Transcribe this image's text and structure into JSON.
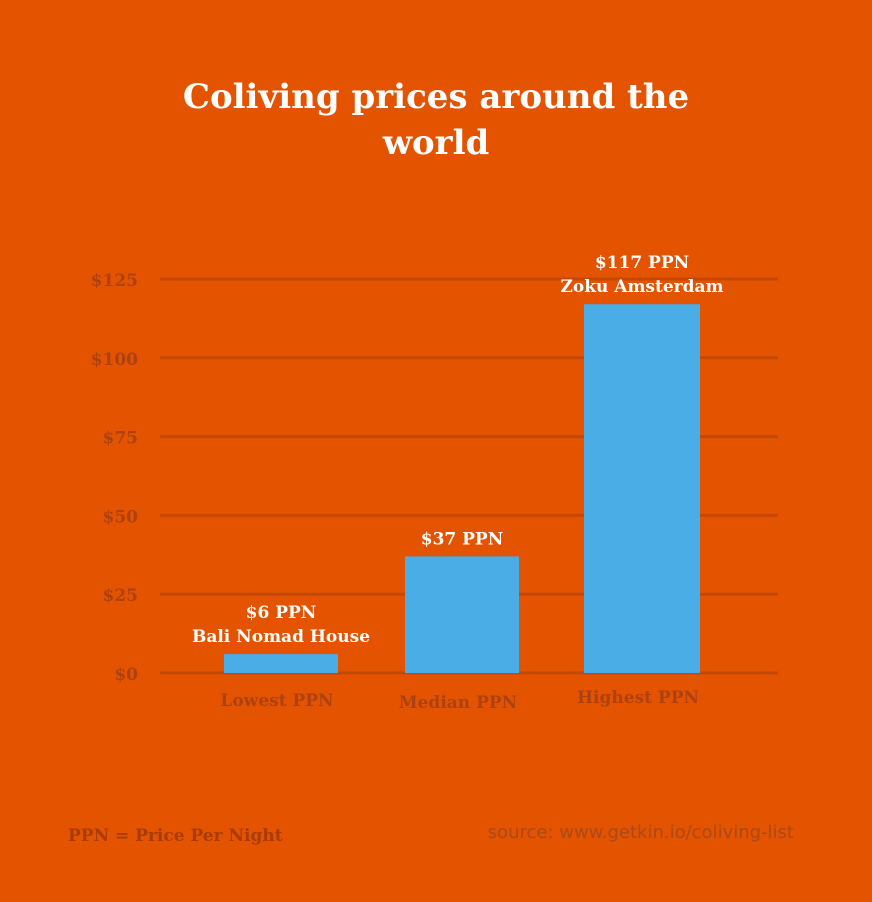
{
  "title": "Coliving prices around the world",
  "footnote": "PPN = Price Per Night",
  "source": "source: www.getkin.io/coliving-list",
  "colors": {
    "background": "#e35300",
    "bar": "#4aade6",
    "grid": "#c44805",
    "axis_text": "#ad4210",
    "label_text": "#ffffff"
  },
  "chart_data": {
    "type": "bar",
    "title": "Coliving prices around the world",
    "xlabel": "",
    "ylabel": "",
    "ylim": [
      0,
      125
    ],
    "yticks": [
      0,
      25,
      50,
      75,
      100,
      125
    ],
    "ytick_labels": [
      "$0",
      "$25",
      "$50",
      "$75",
      "$100",
      "$125"
    ],
    "categories": [
      "Lowest PPN",
      "Median PPN",
      "Highest PPN"
    ],
    "values": [
      6,
      37,
      117
    ],
    "data_labels": [
      [
        "$6 PPN",
        "Bali Nomad House"
      ],
      [
        "$37 PPN"
      ],
      [
        "$117 PPN",
        "Zoku Amsterdam"
      ]
    ],
    "grid": true,
    "legend": "none"
  }
}
